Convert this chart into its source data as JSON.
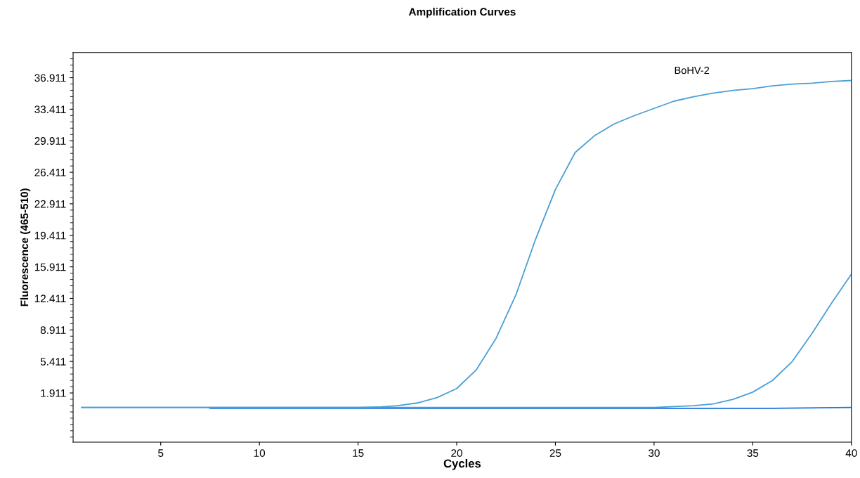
{
  "chart_data": {
    "type": "line",
    "title": "Amplification Curves",
    "xlabel": "Cycles",
    "ylabel": "Fluorescence (465-510)",
    "annotations": [
      "BoHV-2"
    ],
    "xlim": [
      0.56,
      40
    ],
    "xticks": [
      5,
      10,
      15,
      20,
      25,
      30,
      35,
      40
    ],
    "ylim": [
      -3.55,
      39.7
    ],
    "yticks": [
      1.911,
      5.411,
      8.911,
      12.411,
      15.911,
      19.411,
      22.911,
      26.411,
      29.911,
      33.411,
      36.911
    ],
    "grid": false,
    "marker": "none",
    "line_style": "solid",
    "series": [
      {
        "color": "#1a73d9",
        "x": [
          7.5,
          12,
          16,
          20,
          24,
          28,
          32,
          36,
          40
        ],
        "values": [
          0.2,
          0.2,
          0.2,
          0.2,
          0.2,
          0.2,
          0.2,
          0.2,
          0.3
        ]
      },
      {
        "color": "#4a9fd6",
        "x": [
          1,
          5,
          10,
          15,
          20,
          25,
          30,
          32,
          33,
          34,
          35,
          36,
          37,
          38,
          39,
          40
        ],
        "values": [
          0.3,
          0.3,
          0.3,
          0.3,
          0.3,
          0.3,
          0.3,
          0.5,
          0.7,
          1.2,
          2.0,
          3.3,
          5.4,
          8.5,
          11.9,
          15.1
        ]
      },
      {
        "color": "#4a9fd6",
        "x": [
          1,
          5,
          10,
          15,
          16,
          17,
          18,
          19,
          20,
          21,
          22,
          23,
          24,
          25,
          26,
          27,
          28,
          29,
          30,
          31,
          32,
          33,
          34,
          35,
          36,
          37,
          38,
          39,
          40
        ],
        "values": [
          0.3,
          0.3,
          0.3,
          0.3,
          0.35,
          0.5,
          0.8,
          1.4,
          2.4,
          4.5,
          8.0,
          12.8,
          19.0,
          24.5,
          28.6,
          30.5,
          31.8,
          32.7,
          33.5,
          34.3,
          34.8,
          35.2,
          35.5,
          35.7,
          36.0,
          36.2,
          36.3,
          36.5,
          36.6
        ]
      }
    ]
  }
}
